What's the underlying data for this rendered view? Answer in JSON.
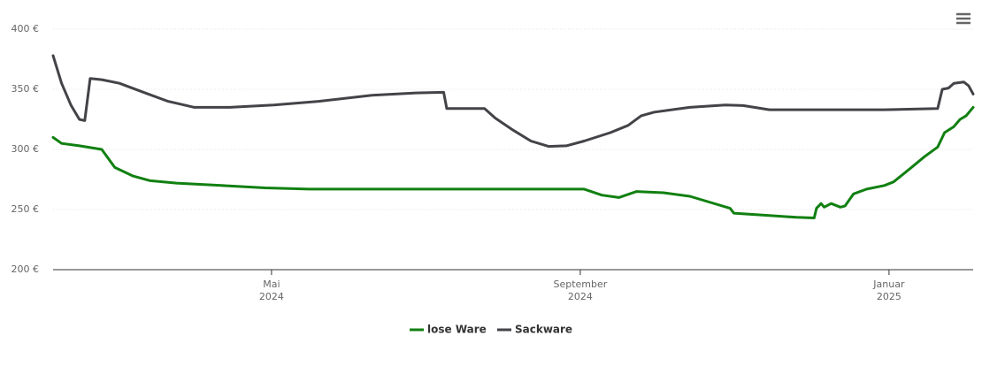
{
  "chart_data": {
    "type": "line",
    "xlim": [
      2.17,
      14.09
    ],
    "xticks": [
      {
        "value": 5,
        "label": "Mai 2024"
      },
      {
        "value": 9,
        "label": "September 2024"
      },
      {
        "value": 13,
        "label": "Januar 2025"
      }
    ],
    "ylim": [
      200,
      400
    ],
    "yticks": [
      {
        "value": 200,
        "label": "200 €"
      },
      {
        "value": 250,
        "label": "250 €"
      },
      {
        "value": 300,
        "label": "300 €"
      },
      {
        "value": 350,
        "label": "350 €"
      },
      {
        "value": 400,
        "label": "400 €"
      }
    ],
    "grid": true,
    "legend": "bottom",
    "series": [
      {
        "name": "lose Ware",
        "color": "#118011",
        "x": [
          2.17,
          2.28,
          2.51,
          2.8,
          2.97,
          3.2,
          3.43,
          3.77,
          4.35,
          4.92,
          5.49,
          9.05,
          9.28,
          9.5,
          9.73,
          10.08,
          10.42,
          10.94,
          10.99,
          11.45,
          11.8,
          12.03,
          12.06,
          12.12,
          12.16,
          12.25,
          12.37,
          12.43,
          12.54,
          12.71,
          12.94,
          13.06,
          13.29,
          13.46,
          13.63,
          13.72,
          13.84,
          13.92,
          14.0,
          14.09
        ],
        "values": [
          310,
          305,
          303,
          300,
          285,
          278,
          274,
          272,
          270,
          268,
          267,
          267,
          262,
          260,
          265,
          264,
          261,
          251,
          247,
          245,
          243.5,
          243,
          251,
          255,
          252,
          255,
          252,
          253,
          263,
          267,
          270,
          273,
          285,
          294,
          302,
          314,
          319,
          325,
          328,
          335
        ]
      },
      {
        "name": "Sackware",
        "color": "#434348",
        "x": [
          2.17,
          2.28,
          2.4,
          2.51,
          2.58,
          2.65,
          2.8,
          3.03,
          3.32,
          3.66,
          4.0,
          4.46,
          5.03,
          5.61,
          6.3,
          6.87,
          7.23,
          7.27,
          7.76,
          7.9,
          8.13,
          8.36,
          8.59,
          8.82,
          9.05,
          9.39,
          9.62,
          9.79,
          9.96,
          10.42,
          10.88,
          11.11,
          11.45,
          12.94,
          13.63,
          13.69,
          13.77,
          13.84,
          13.97,
          14.03,
          14.09
        ],
        "values": [
          378,
          355,
          337,
          325,
          324,
          359,
          358,
          355,
          348,
          340,
          335,
          335,
          337,
          340,
          345,
          347,
          347.5,
          334,
          334,
          326,
          316,
          307,
          302.5,
          303,
          307,
          314,
          320,
          328,
          331,
          335,
          337,
          336.5,
          333,
          333,
          334,
          350,
          351,
          355,
          356,
          353,
          346
        ]
      }
    ]
  }
}
